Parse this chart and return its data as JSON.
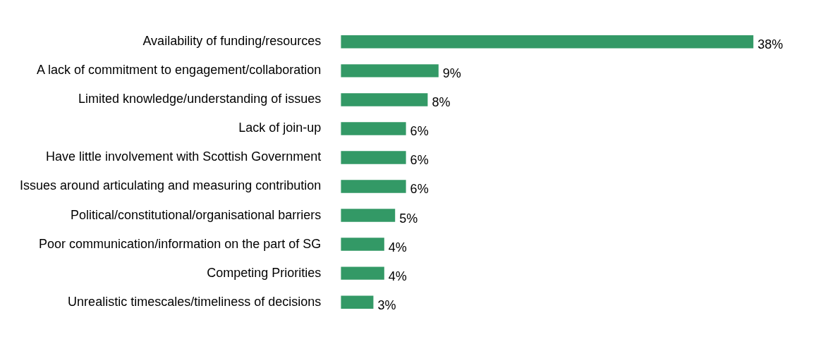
{
  "chart_data": {
    "type": "bar",
    "orientation": "horizontal",
    "categories": [
      "Availability of funding/resources",
      "A lack of commitment to engagement/collaboration",
      "Limited knowledge/understanding of issues",
      "Lack of join-up",
      "Have little involvement with Scottish Government",
      "Issues around articulating and measuring contribution",
      "Political/constitutional/organisational barriers",
      "Poor communication/information on the part of SG",
      "Competing Priorities",
      "Unrealistic timescales/timeliness of decisions"
    ],
    "values": [
      38,
      9,
      8,
      6,
      6,
      6,
      5,
      4,
      4,
      3
    ],
    "value_labels": [
      "38%",
      "9%",
      "8%",
      "6%",
      "6%",
      "6%",
      "5%",
      "4%",
      "4%",
      "3%"
    ],
    "color": "#339966"
  }
}
